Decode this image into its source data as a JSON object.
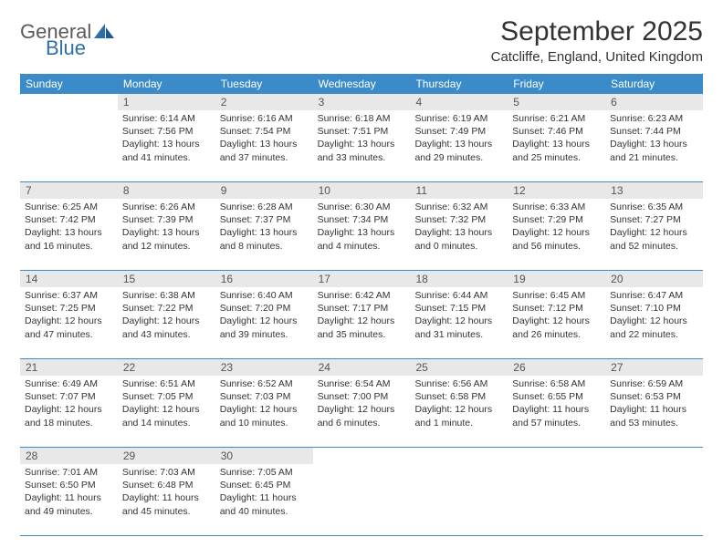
{
  "logo": {
    "word1": "General",
    "word2": "Blue"
  },
  "title": "September 2025",
  "location": "Catcliffe, England, United Kingdom",
  "colors": {
    "header_bg": "#3b8bc8",
    "header_text": "#ffffff",
    "daynum_bg": "#e8e8e8",
    "text": "#333333",
    "logo_gray": "#5a5a5a",
    "logo_blue": "#2f6fa8",
    "divider": "#3b8bc8"
  },
  "weekdays": [
    "Sunday",
    "Monday",
    "Tuesday",
    "Wednesday",
    "Thursday",
    "Friday",
    "Saturday"
  ],
  "weeks": [
    [
      {
        "n": "",
        "sunrise": "",
        "sunset": "",
        "daylight": ""
      },
      {
        "n": "1",
        "sunrise": "Sunrise: 6:14 AM",
        "sunset": "Sunset: 7:56 PM",
        "daylight": "Daylight: 13 hours and 41 minutes."
      },
      {
        "n": "2",
        "sunrise": "Sunrise: 6:16 AM",
        "sunset": "Sunset: 7:54 PM",
        "daylight": "Daylight: 13 hours and 37 minutes."
      },
      {
        "n": "3",
        "sunrise": "Sunrise: 6:18 AM",
        "sunset": "Sunset: 7:51 PM",
        "daylight": "Daylight: 13 hours and 33 minutes."
      },
      {
        "n": "4",
        "sunrise": "Sunrise: 6:19 AM",
        "sunset": "Sunset: 7:49 PM",
        "daylight": "Daylight: 13 hours and 29 minutes."
      },
      {
        "n": "5",
        "sunrise": "Sunrise: 6:21 AM",
        "sunset": "Sunset: 7:46 PM",
        "daylight": "Daylight: 13 hours and 25 minutes."
      },
      {
        "n": "6",
        "sunrise": "Sunrise: 6:23 AM",
        "sunset": "Sunset: 7:44 PM",
        "daylight": "Daylight: 13 hours and 21 minutes."
      }
    ],
    [
      {
        "n": "7",
        "sunrise": "Sunrise: 6:25 AM",
        "sunset": "Sunset: 7:42 PM",
        "daylight": "Daylight: 13 hours and 16 minutes."
      },
      {
        "n": "8",
        "sunrise": "Sunrise: 6:26 AM",
        "sunset": "Sunset: 7:39 PM",
        "daylight": "Daylight: 13 hours and 12 minutes."
      },
      {
        "n": "9",
        "sunrise": "Sunrise: 6:28 AM",
        "sunset": "Sunset: 7:37 PM",
        "daylight": "Daylight: 13 hours and 8 minutes."
      },
      {
        "n": "10",
        "sunrise": "Sunrise: 6:30 AM",
        "sunset": "Sunset: 7:34 PM",
        "daylight": "Daylight: 13 hours and 4 minutes."
      },
      {
        "n": "11",
        "sunrise": "Sunrise: 6:32 AM",
        "sunset": "Sunset: 7:32 PM",
        "daylight": "Daylight: 13 hours and 0 minutes."
      },
      {
        "n": "12",
        "sunrise": "Sunrise: 6:33 AM",
        "sunset": "Sunset: 7:29 PM",
        "daylight": "Daylight: 12 hours and 56 minutes."
      },
      {
        "n": "13",
        "sunrise": "Sunrise: 6:35 AM",
        "sunset": "Sunset: 7:27 PM",
        "daylight": "Daylight: 12 hours and 52 minutes."
      }
    ],
    [
      {
        "n": "14",
        "sunrise": "Sunrise: 6:37 AM",
        "sunset": "Sunset: 7:25 PM",
        "daylight": "Daylight: 12 hours and 47 minutes."
      },
      {
        "n": "15",
        "sunrise": "Sunrise: 6:38 AM",
        "sunset": "Sunset: 7:22 PM",
        "daylight": "Daylight: 12 hours and 43 minutes."
      },
      {
        "n": "16",
        "sunrise": "Sunrise: 6:40 AM",
        "sunset": "Sunset: 7:20 PM",
        "daylight": "Daylight: 12 hours and 39 minutes."
      },
      {
        "n": "17",
        "sunrise": "Sunrise: 6:42 AM",
        "sunset": "Sunset: 7:17 PM",
        "daylight": "Daylight: 12 hours and 35 minutes."
      },
      {
        "n": "18",
        "sunrise": "Sunrise: 6:44 AM",
        "sunset": "Sunset: 7:15 PM",
        "daylight": "Daylight: 12 hours and 31 minutes."
      },
      {
        "n": "19",
        "sunrise": "Sunrise: 6:45 AM",
        "sunset": "Sunset: 7:12 PM",
        "daylight": "Daylight: 12 hours and 26 minutes."
      },
      {
        "n": "20",
        "sunrise": "Sunrise: 6:47 AM",
        "sunset": "Sunset: 7:10 PM",
        "daylight": "Daylight: 12 hours and 22 minutes."
      }
    ],
    [
      {
        "n": "21",
        "sunrise": "Sunrise: 6:49 AM",
        "sunset": "Sunset: 7:07 PM",
        "daylight": "Daylight: 12 hours and 18 minutes."
      },
      {
        "n": "22",
        "sunrise": "Sunrise: 6:51 AM",
        "sunset": "Sunset: 7:05 PM",
        "daylight": "Daylight: 12 hours and 14 minutes."
      },
      {
        "n": "23",
        "sunrise": "Sunrise: 6:52 AM",
        "sunset": "Sunset: 7:03 PM",
        "daylight": "Daylight: 12 hours and 10 minutes."
      },
      {
        "n": "24",
        "sunrise": "Sunrise: 6:54 AM",
        "sunset": "Sunset: 7:00 PM",
        "daylight": "Daylight: 12 hours and 6 minutes."
      },
      {
        "n": "25",
        "sunrise": "Sunrise: 6:56 AM",
        "sunset": "Sunset: 6:58 PM",
        "daylight": "Daylight: 12 hours and 1 minute."
      },
      {
        "n": "26",
        "sunrise": "Sunrise: 6:58 AM",
        "sunset": "Sunset: 6:55 PM",
        "daylight": "Daylight: 11 hours and 57 minutes."
      },
      {
        "n": "27",
        "sunrise": "Sunrise: 6:59 AM",
        "sunset": "Sunset: 6:53 PM",
        "daylight": "Daylight: 11 hours and 53 minutes."
      }
    ],
    [
      {
        "n": "28",
        "sunrise": "Sunrise: 7:01 AM",
        "sunset": "Sunset: 6:50 PM",
        "daylight": "Daylight: 11 hours and 49 minutes."
      },
      {
        "n": "29",
        "sunrise": "Sunrise: 7:03 AM",
        "sunset": "Sunset: 6:48 PM",
        "daylight": "Daylight: 11 hours and 45 minutes."
      },
      {
        "n": "30",
        "sunrise": "Sunrise: 7:05 AM",
        "sunset": "Sunset: 6:45 PM",
        "daylight": "Daylight: 11 hours and 40 minutes."
      },
      {
        "n": "",
        "sunrise": "",
        "sunset": "",
        "daylight": ""
      },
      {
        "n": "",
        "sunrise": "",
        "sunset": "",
        "daylight": ""
      },
      {
        "n": "",
        "sunrise": "",
        "sunset": "",
        "daylight": ""
      },
      {
        "n": "",
        "sunrise": "",
        "sunset": "",
        "daylight": ""
      }
    ]
  ]
}
